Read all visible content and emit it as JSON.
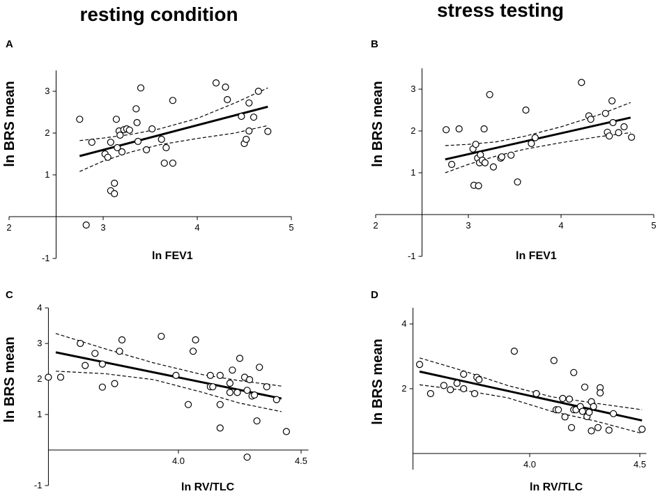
{
  "titles": {
    "left": "resting condition",
    "right": "stress testing"
  },
  "chart_data": [
    {
      "panel": "A",
      "type": "scatter",
      "xlabel": "ln FEV1",
      "ylabel": "ln BRS mean",
      "xlim": [
        2,
        5
      ],
      "ylim": [
        -1,
        3.5
      ],
      "x_ticks": [
        2,
        3,
        4,
        5
      ],
      "y_ticks": [
        -1,
        1,
        2,
        3
      ],
      "axis_cross": {
        "x": 2.5,
        "y": 0
      },
      "points": [
        [
          2.75,
          2.33
        ],
        [
          2.82,
          -0.2
        ],
        [
          2.88,
          1.78
        ],
        [
          3.02,
          1.5
        ],
        [
          3.05,
          1.42
        ],
        [
          3.08,
          1.78
        ],
        [
          3.08,
          0.62
        ],
        [
          3.12,
          0.8
        ],
        [
          3.12,
          0.55
        ],
        [
          3.14,
          2.33
        ],
        [
          3.15,
          1.65
        ],
        [
          3.17,
          2.05
        ],
        [
          3.18,
          1.95
        ],
        [
          3.2,
          1.55
        ],
        [
          3.22,
          2.08
        ],
        [
          3.25,
          2.1
        ],
        [
          3.28,
          2.07
        ],
        [
          3.35,
          2.58
        ],
        [
          3.36,
          2.25
        ],
        [
          3.37,
          1.8
        ],
        [
          3.4,
          3.08
        ],
        [
          3.46,
          1.6
        ],
        [
          3.52,
          2.1
        ],
        [
          3.62,
          1.85
        ],
        [
          3.65,
          1.28
        ],
        [
          3.67,
          1.65
        ],
        [
          3.74,
          2.78
        ],
        [
          3.74,
          1.28
        ],
        [
          4.2,
          3.2
        ],
        [
          4.3,
          3.1
        ],
        [
          4.32,
          2.8
        ],
        [
          4.47,
          2.4
        ],
        [
          4.5,
          1.75
        ],
        [
          4.52,
          1.85
        ],
        [
          4.55,
          2.72
        ],
        [
          4.55,
          2.05
        ],
        [
          4.6,
          2.38
        ],
        [
          4.65,
          3.0
        ],
        [
          4.75,
          2.04
        ]
      ],
      "fit": {
        "x": [
          2.75,
          4.75
        ],
        "y": [
          1.45,
          2.63
        ]
      },
      "ci_upper": {
        "x": [
          2.75,
          3.0,
          3.3,
          3.6,
          4.0,
          4.4,
          4.75
        ],
        "y": [
          1.82,
          1.88,
          1.97,
          2.1,
          2.35,
          2.72,
          3.08
        ]
      },
      "ci_lower": {
        "x": [
          2.75,
          3.0,
          3.3,
          3.6,
          4.0,
          4.4,
          4.75
        ],
        "y": [
          1.08,
          1.33,
          1.55,
          1.72,
          1.87,
          2.0,
          2.18
        ]
      }
    },
    {
      "panel": "B",
      "type": "scatter",
      "xlabel": "ln FEV1",
      "ylabel": "ln BRS mean",
      "xlim": [
        2,
        5
      ],
      "ylim": [
        -1,
        3.5
      ],
      "x_ticks": [
        2,
        3,
        4,
        5
      ],
      "y_ticks": [
        -1,
        1,
        2,
        3
      ],
      "axis_cross": {
        "x": 2.5,
        "y": 0
      },
      "points": [
        [
          2.76,
          2.03
        ],
        [
          2.82,
          1.2
        ],
        [
          2.9,
          2.05
        ],
        [
          3.05,
          1.57
        ],
        [
          3.06,
          0.7
        ],
        [
          3.08,
          1.68
        ],
        [
          3.1,
          1.35
        ],
        [
          3.11,
          0.69
        ],
        [
          3.12,
          1.24
        ],
        [
          3.13,
          1.43
        ],
        [
          3.15,
          1.3
        ],
        [
          3.17,
          2.05
        ],
        [
          3.18,
          1.24
        ],
        [
          3.23,
          2.87
        ],
        [
          3.27,
          1.14
        ],
        [
          3.35,
          1.35
        ],
        [
          3.36,
          1.38
        ],
        [
          3.46,
          1.42
        ],
        [
          3.53,
          0.78
        ],
        [
          3.62,
          2.5
        ],
        [
          3.68,
          1.7
        ],
        [
          3.72,
          1.84
        ],
        [
          4.22,
          3.16
        ],
        [
          4.3,
          2.36
        ],
        [
          4.32,
          2.28
        ],
        [
          4.48,
          2.42
        ],
        [
          4.5,
          1.97
        ],
        [
          4.52,
          1.88
        ],
        [
          4.55,
          2.72
        ],
        [
          4.56,
          2.2
        ],
        [
          4.62,
          1.96
        ],
        [
          4.68,
          2.1
        ],
        [
          4.76,
          1.85
        ]
      ],
      "fit": {
        "x": [
          2.75,
          4.75
        ],
        "y": [
          1.32,
          2.32
        ]
      },
      "ci_upper": {
        "x": [
          2.75,
          3.0,
          3.3,
          3.6,
          4.0,
          4.4,
          4.75
        ],
        "y": [
          1.65,
          1.68,
          1.74,
          1.87,
          2.1,
          2.38,
          2.68
        ]
      },
      "ci_lower": {
        "x": [
          2.75,
          3.0,
          3.3,
          3.6,
          4.0,
          4.4,
          4.75
        ],
        "y": [
          1.0,
          1.2,
          1.4,
          1.56,
          1.72,
          1.86,
          1.96
        ]
      }
    },
    {
      "panel": "C",
      "type": "scatter",
      "xlabel": "ln RV/TLC",
      "ylabel": "ln BRS mean",
      "xlim": [
        3.47,
        4.53
      ],
      "ylim": [
        -1,
        4
      ],
      "x_ticks": [
        4.0,
        4.5
      ],
      "x_tick_labels": [
        "4.0",
        "4.5"
      ],
      "y_ticks": [
        -1,
        1,
        2,
        3,
        4
      ],
      "axis_cross": {
        "x": 3.47,
        "y": 0
      },
      "points": [
        [
          3.47,
          2.05
        ],
        [
          3.52,
          2.05
        ],
        [
          3.6,
          3.0
        ],
        [
          3.62,
          2.38
        ],
        [
          3.66,
          2.72
        ],
        [
          3.69,
          1.77
        ],
        [
          3.69,
          2.42
        ],
        [
          3.74,
          1.87
        ],
        [
          3.76,
          2.78
        ],
        [
          3.77,
          3.1
        ],
        [
          3.93,
          3.2
        ],
        [
          3.99,
          2.1
        ],
        [
          4.04,
          1.28
        ],
        [
          4.06,
          2.78
        ],
        [
          4.07,
          3.1
        ],
        [
          4.13,
          2.1
        ],
        [
          4.13,
          1.78
        ],
        [
          4.14,
          1.78
        ],
        [
          4.17,
          1.28
        ],
        [
          4.17,
          2.1
        ],
        [
          4.17,
          0.62
        ],
        [
          4.21,
          1.62
        ],
        [
          4.21,
          1.88
        ],
        [
          4.22,
          2.25
        ],
        [
          4.24,
          1.62
        ],
        [
          4.25,
          2.58
        ],
        [
          4.27,
          2.05
        ],
        [
          4.28,
          1.68
        ],
        [
          4.28,
          -0.2
        ],
        [
          4.29,
          1.98
        ],
        [
          4.3,
          1.52
        ],
        [
          4.31,
          1.55
        ],
        [
          4.32,
          0.82
        ],
        [
          4.33,
          2.33
        ],
        [
          4.36,
          1.78
        ],
        [
          4.4,
          1.42
        ],
        [
          4.44,
          0.52
        ]
      ],
      "fit": {
        "x": [
          3.5,
          4.42
        ],
        "y": [
          2.75,
          1.45
        ]
      },
      "ci_upper": {
        "x": [
          3.5,
          3.7,
          3.9,
          4.1,
          4.25,
          4.42
        ],
        "y": [
          3.28,
          2.85,
          2.45,
          2.12,
          1.95,
          1.8
        ]
      },
      "ci_lower": {
        "x": [
          3.5,
          3.7,
          3.9,
          4.1,
          4.25,
          4.42
        ],
        "y": [
          2.22,
          2.15,
          1.98,
          1.62,
          1.32,
          1.08
        ]
      }
    },
    {
      "panel": "D",
      "type": "scatter",
      "xlabel": "ln RV/TLC",
      "ylabel": "ln BRS mean",
      "xlim": [
        3.47,
        4.53
      ],
      "ylim": [
        -0.5,
        4.5
      ],
      "x_ticks": [
        4.0,
        4.5
      ],
      "x_tick_labels": [
        "4.0",
        "4.5"
      ],
      "y_ticks": [
        2,
        4
      ],
      "axis_cross": {
        "x": 3.47,
        "y": 0
      },
      "points": [
        [
          3.5,
          2.75
        ],
        [
          3.55,
          1.85
        ],
        [
          3.61,
          2.1
        ],
        [
          3.64,
          1.97
        ],
        [
          3.67,
          2.17
        ],
        [
          3.7,
          2.45
        ],
        [
          3.7,
          2.0
        ],
        [
          3.75,
          1.85
        ],
        [
          3.76,
          2.35
        ],
        [
          3.77,
          2.28
        ],
        [
          3.93,
          3.16
        ],
        [
          4.03,
          1.85
        ],
        [
          4.11,
          2.87
        ],
        [
          4.12,
          1.35
        ],
        [
          4.13,
          1.35
        ],
        [
          4.15,
          1.7
        ],
        [
          4.16,
          1.13
        ],
        [
          4.18,
          1.68
        ],
        [
          4.19,
          0.8
        ],
        [
          4.2,
          2.5
        ],
        [
          4.2,
          1.35
        ],
        [
          4.21,
          1.35
        ],
        [
          4.23,
          1.45
        ],
        [
          4.24,
          1.3
        ],
        [
          4.25,
          2.05
        ],
        [
          4.26,
          1.14
        ],
        [
          4.27,
          1.27
        ],
        [
          4.28,
          0.7
        ],
        [
          4.28,
          1.6
        ],
        [
          4.29,
          1.45
        ],
        [
          4.31,
          0.8
        ],
        [
          4.32,
          2.03
        ],
        [
          4.32,
          1.87
        ],
        [
          4.36,
          0.72
        ],
        [
          4.38,
          1.23
        ],
        [
          4.51,
          0.75
        ]
      ],
      "fit": {
        "x": [
          3.5,
          4.51
        ],
        "y": [
          2.53,
          1.02
        ]
      },
      "ci_upper": {
        "x": [
          3.5,
          3.7,
          3.9,
          4.1,
          4.3,
          4.51
        ],
        "y": [
          2.95,
          2.55,
          2.1,
          1.75,
          1.55,
          1.35
        ]
      },
      "ci_lower": {
        "x": [
          3.5,
          3.7,
          3.9,
          4.1,
          4.3,
          4.51
        ],
        "y": [
          2.12,
          1.95,
          1.72,
          1.3,
          1.0,
          0.62
        ]
      }
    }
  ]
}
